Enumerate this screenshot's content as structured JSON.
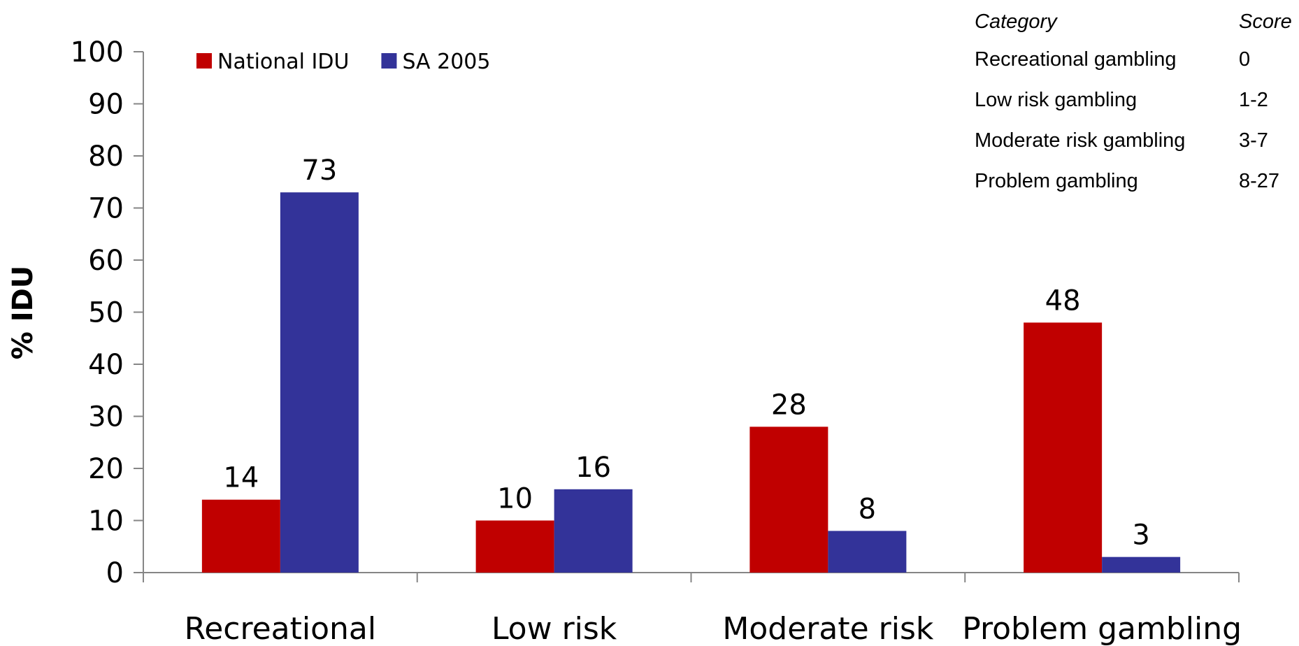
{
  "chart_data": {
    "type": "bar",
    "categories": [
      "Recreational",
      "Low risk",
      "Moderate risk",
      "Problem gambling"
    ],
    "series": [
      {
        "name": "National IDU",
        "values": [
          14,
          10,
          28,
          48
        ],
        "color": "#c00000"
      },
      {
        "name": "SA 2005",
        "values": [
          73,
          16,
          8,
          3
        ],
        "color": "#333399"
      }
    ],
    "ylabel": "% IDU",
    "xlabel": "",
    "ylim": [
      0,
      100
    ],
    "yticks": [
      "0",
      "10",
      "20",
      "30",
      "40",
      "50",
      "60",
      "70",
      "80",
      "90",
      "100"
    ],
    "grid": false,
    "legend_position": "top-left"
  },
  "reference_table": {
    "header": {
      "category": "Category",
      "score": "Score"
    },
    "rows": [
      {
        "category": "Recreational gambling",
        "score": "0"
      },
      {
        "category": "Low risk gambling",
        "score": "1-2"
      },
      {
        "category": "Moderate risk gambling",
        "score": "3-7"
      },
      {
        "category": "Problem gambling",
        "score": "8-27"
      }
    ]
  }
}
